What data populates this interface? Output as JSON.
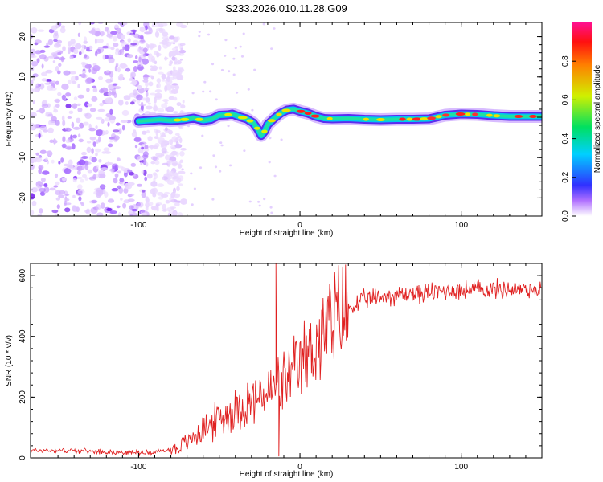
{
  "chart_data": [
    {
      "type": "heatmap",
      "title": "S233.2026.010.11.28.G09",
      "xlabel": "Height of straight line (km)",
      "ylabel": "Frequency (Hz)",
      "xlim": [
        -167,
        150
      ],
      "ylim": [
        -24.5,
        23.5
      ],
      "x_ticks": [
        -100,
        0,
        100
      ],
      "y_ticks": [
        -20,
        -10,
        0,
        10,
        20
      ],
      "colorbar": {
        "label": "Normalized spectral amplitude",
        "range": [
          0,
          1
        ],
        "ticks": [
          0.0,
          0.2,
          0.4,
          0.6,
          0.8
        ]
      },
      "ridge": {
        "description": "dominant frequency ridge",
        "x": [
          -100,
          -87,
          -80,
          -72,
          -66,
          -60,
          -55,
          -50,
          -45,
          -42,
          -38,
          -33,
          -29,
          -26,
          -24,
          -22,
          -20,
          -16,
          -12,
          -8,
          -4,
          0,
          5,
          10,
          15,
          20,
          30,
          40,
          50,
          60,
          70,
          80,
          90,
          100,
          110,
          120,
          130,
          140,
          150
        ],
        "y": [
          -1,
          -0.6,
          -0.8,
          -0.6,
          -0.2,
          -0.8,
          -0.5,
          0.5,
          0.6,
          0.8,
          0.2,
          -0.4,
          -1.4,
          -3,
          -4.5,
          -3.5,
          -1.8,
          -0.3,
          1,
          1.8,
          2,
          1.5,
          1,
          0.2,
          -0.3,
          -0.4,
          -0.3,
          -0.5,
          -0.6,
          -0.5,
          -0.5,
          -0.4,
          0.5,
          0.8,
          0.7,
          0.4,
          0.2,
          0.2,
          0.2
        ]
      },
      "noise_region_x": [
        -167,
        -80
      ]
    },
    {
      "type": "line",
      "xlabel": "Height of straight line (km)",
      "ylabel": "SNR (10 * v/v)",
      "xlim": [
        -167,
        150
      ],
      "ylim": [
        0,
        640
      ],
      "x_ticks": [
        -100,
        0,
        100
      ],
      "y_ticks": [
        0,
        200,
        400,
        600
      ],
      "series": [
        {
          "name": "SNR",
          "color": "#e02020",
          "x": [
            -167,
            -150,
            -130,
            -110,
            -95,
            -85,
            -75,
            -70,
            -65,
            -60,
            -55,
            -50,
            -45,
            -40,
            -35,
            -30,
            -25,
            -20,
            -15,
            -10,
            -5,
            0,
            5,
            10,
            15,
            20,
            25,
            30,
            35,
            40,
            50,
            60,
            70,
            80,
            90,
            100,
            110,
            120,
            130,
            140,
            150
          ],
          "values": [
            25,
            25,
            22,
            18,
            18,
            22,
            35,
            50,
            75,
            95,
            110,
            130,
            145,
            160,
            175,
            185,
            200,
            210,
            230,
            245,
            265,
            300,
            340,
            380,
            410,
            440,
            465,
            490,
            505,
            520,
            530,
            535,
            540,
            545,
            550,
            552,
            555,
            555,
            556,
            556,
            556
          ]
        }
      ],
      "annotations": [
        {
          "x": -15,
          "value": 640,
          "note": "spike"
        },
        {
          "x": -13,
          "value": 5,
          "note": "dip"
        }
      ]
    }
  ]
}
